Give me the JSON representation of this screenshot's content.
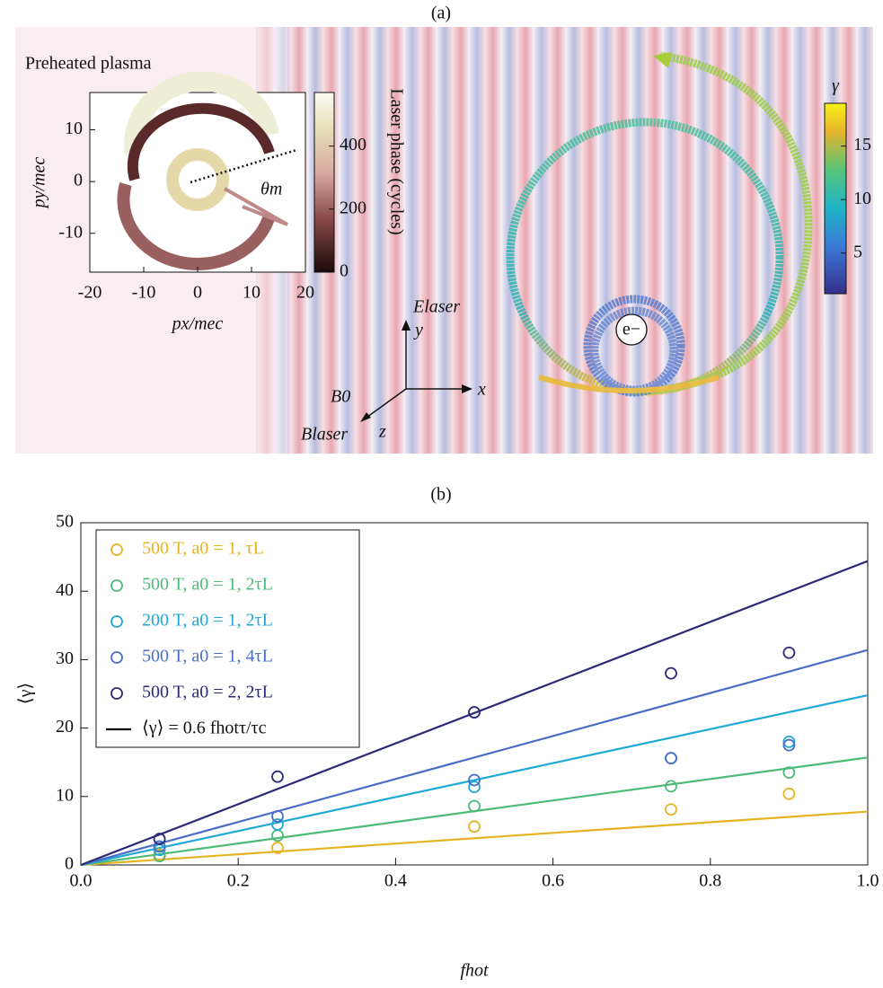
{
  "panel_a": {
    "title": "(a)",
    "label": "Preheated plasma",
    "particle": "e−",
    "axes": {
      "y_field": "Elaser",
      "y": "y",
      "x": "x",
      "b0": "B0",
      "b_laser": "Blaser",
      "z": "z"
    },
    "gamma_colorbar": {
      "label": "γ",
      "lim": [
        1.2,
        19
      ],
      "ticks": [
        5,
        10,
        15
      ]
    }
  },
  "chart_data": [
    {
      "type": "phase-space",
      "xlabel": "px/mec",
      "ylabel": "py/mec",
      "annotation": "θm",
      "xlim": [
        -20,
        20
      ],
      "xticks": [
        -20,
        -10,
        0,
        10,
        20
      ],
      "ylim": [
        -17.5,
        17.2
      ],
      "yticks": [
        -10,
        0,
        10
      ],
      "colorbar": {
        "label": "Laser phase (cycles)",
        "lim": [
          0,
          570
        ],
        "ticks": [
          0,
          200,
          400
        ]
      }
    },
    {
      "type": "scatter",
      "title": "(b)",
      "xlabel": "fhot",
      "ylabel": "⟨γ⟩",
      "legend": "upper-left",
      "x": [
        0.1,
        0.25,
        0.5,
        0.75,
        0.9
      ],
      "xlim": [
        0,
        1
      ],
      "xticks": [
        {
          "value": 0,
          "label": "0.0"
        },
        0.2,
        0.4,
        0.6,
        0.8,
        {
          "value": 1,
          "label": "1.0"
        }
      ],
      "ylim": [
        0,
        50
      ],
      "yticks": [
        0,
        10,
        20,
        30,
        40,
        50
      ],
      "fit": {
        "name": "⟨γ⟩ = 0.6 fhotτ/τc",
        "color": "#000000",
        "x": [
          0,
          1
        ]
      },
      "series": [
        {
          "name": "500 T, a0 = 1, τL",
          "color": "#e6b422",
          "values": [
            1.5,
            2.5,
            5.6,
            8.1,
            10.4
          ],
          "fit_values": [
            0,
            7.8
          ]
        },
        {
          "name": "500 T, a0 = 1, 2τL",
          "color": "#4dbb78",
          "values": [
            1.3,
            4.3,
            8.6,
            11.5,
            13.5
          ],
          "fit_values": [
            0,
            15.7
          ]
        },
        {
          "name": "200 T, a0 = 1, 2τL",
          "color": "#1fa9d6",
          "values": [
            2.2,
            5.9,
            11.4,
            15.6,
            18.0
          ],
          "fit_values": [
            0,
            24.8
          ]
        },
        {
          "name": "500 T, a0 = 1, 4τL",
          "color": "#4a6ec6",
          "values": [
            2.7,
            7.1,
            12.4,
            15.6,
            17.5
          ],
          "fit_values": [
            0,
            31.4
          ]
        },
        {
          "name": "500 T, a0 = 2, 2τL",
          "color": "#2d2a78",
          "values": [
            3.8,
            12.9,
            22.3,
            28.0,
            31.0
          ],
          "fit_values": [
            0,
            44.4
          ]
        }
      ]
    }
  ]
}
